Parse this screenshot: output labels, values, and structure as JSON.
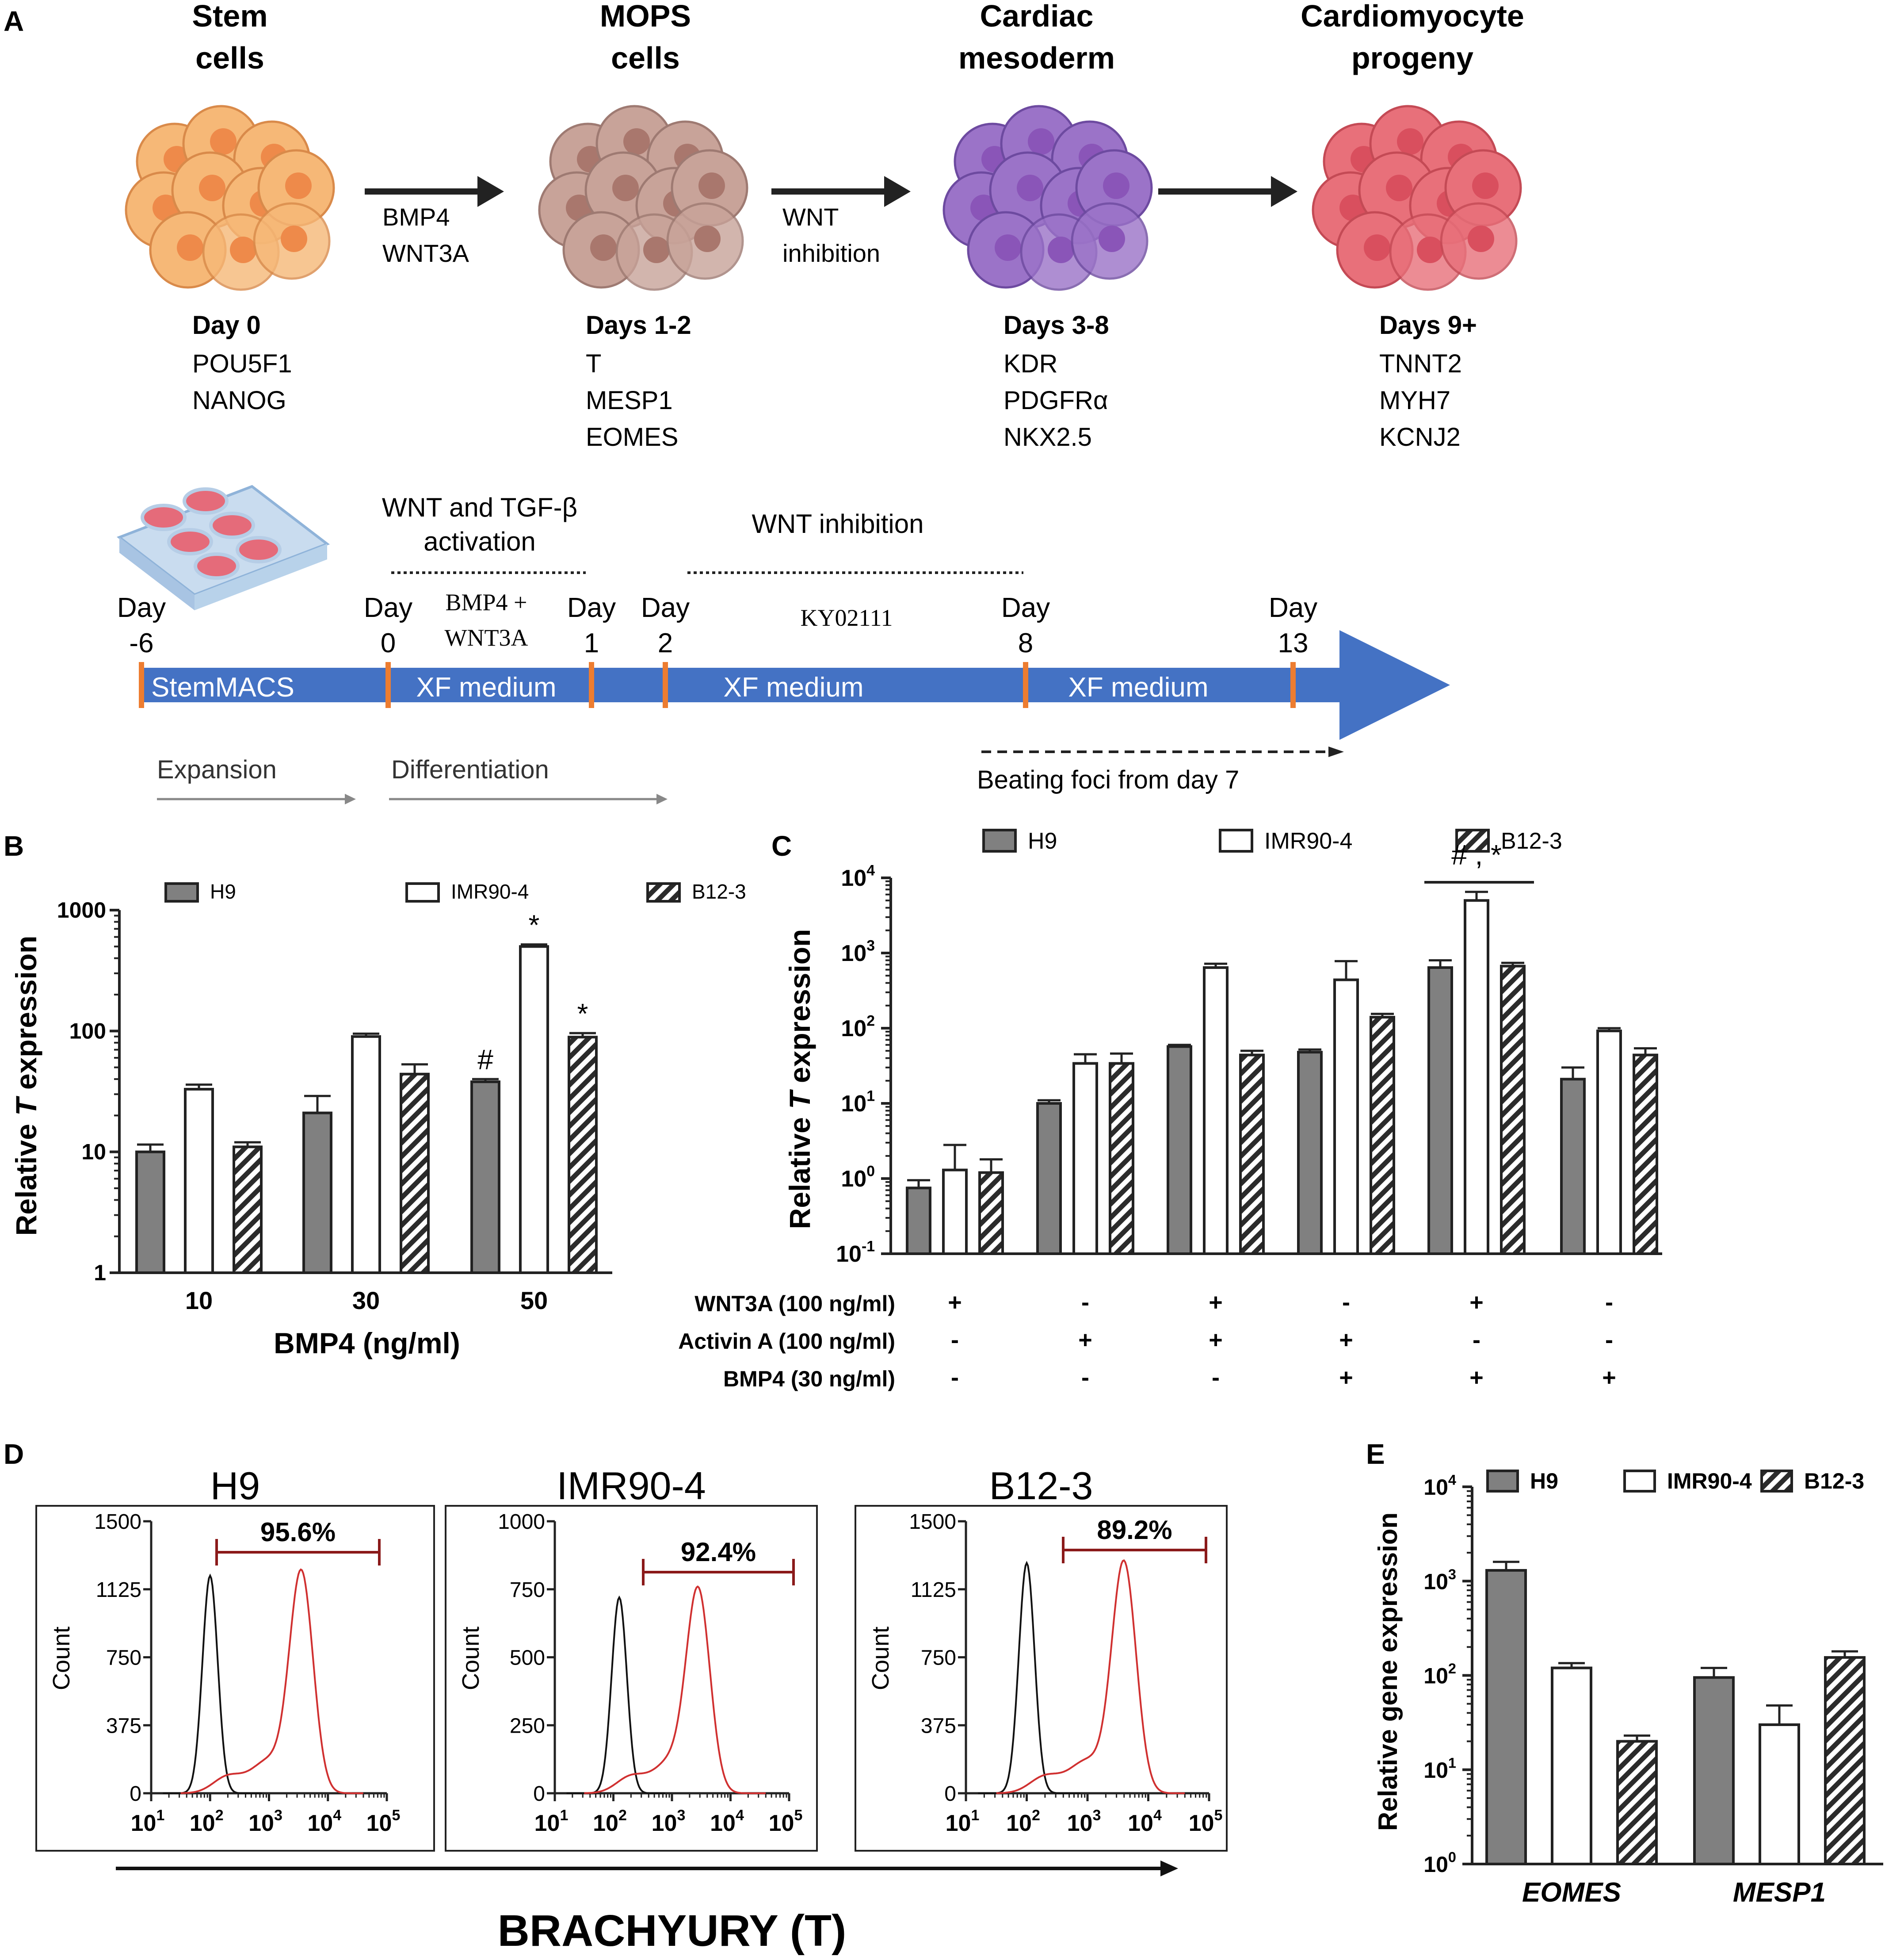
{
  "colors": {
    "black": "#222222",
    "grey": "#808080",
    "blue": "#4472c4",
    "orange": "#ed7d31",
    "red": "#d03030",
    "dark_red": "#8b1a1a",
    "stem": "#f6b877",
    "mops": "#c8a399",
    "meso": "#9b73c8",
    "cardio": "#e8707a"
  },
  "panel_a": {
    "letter": "A",
    "stages": [
      {
        "title1": "Stem",
        "title2": "cells",
        "day": "Day 0",
        "markers": [
          "POU5F1",
          "NANOG"
        ]
      },
      {
        "title1": "MOPS",
        "title2": "cells",
        "day": "Days 1-2",
        "markers": [
          "T",
          "MESP1",
          "EOMES"
        ]
      },
      {
        "title1": "Cardiac",
        "title2": "mesoderm",
        "day": "Days 3-8",
        "markers": [
          "KDR",
          "PDGFRα",
          "NKX2.5"
        ]
      },
      {
        "title1": "Cardiomyocyte",
        "title2": "progeny",
        "day": "Days 9+",
        "markers": [
          "TNNT2",
          "MYH7",
          "KCNJ2"
        ]
      }
    ],
    "arrow1": [
      "BMP4",
      "WNT3A"
    ],
    "arrow2": [
      "WNT",
      "inhibition"
    ],
    "timeline": {
      "act_label": [
        "WNT and TGF-β",
        "activation"
      ],
      "inh_label": "WNT inhibition",
      "ticks": [
        {
          "day": "Day",
          "num": "-6"
        },
        {
          "day": "Day",
          "num": "0"
        },
        {
          "day": "Day",
          "num": "1"
        },
        {
          "day": "Day",
          "num": "2"
        },
        {
          "day": "Day",
          "num": "8"
        },
        {
          "day": "Day",
          "num": "13"
        }
      ],
      "compounds1": [
        "BMP4 +",
        "WNT3A"
      ],
      "compound2": "KY02111",
      "segments": [
        "StemMACS",
        "XF medium",
        "XF medium",
        "XF medium"
      ],
      "expansion": "Expansion",
      "differentiation": "Differentiation",
      "beating": "Beating foci from day 7"
    }
  },
  "panel_b": {
    "letter": "B"
  },
  "panel_c": {
    "letter": "C"
  },
  "panel_d": {
    "letter": "D",
    "brachyury": "BRACHYURY (T)"
  },
  "panel_e": {
    "letter": "E"
  },
  "chart_data": [
    {
      "id": "B",
      "type": "bar",
      "scale": "log",
      "legend": [
        "H9",
        "IMR90-4",
        "B12-3"
      ],
      "categories": [
        "10",
        "30",
        "50"
      ],
      "series": [
        {
          "name": "H9",
          "values": [
            10,
            21,
            38
          ],
          "errors": [
            11.5,
            29,
            40
          ]
        },
        {
          "name": "IMR90-4",
          "values": [
            33,
            90,
            500
          ],
          "errors": [
            36,
            95,
            520
          ]
        },
        {
          "name": "B12-3",
          "values": [
            11,
            44,
            89
          ],
          "errors": [
            12,
            53,
            96
          ]
        }
      ],
      "annotations": [
        {
          "category": "50",
          "series": "H9",
          "text": "#"
        },
        {
          "category": "50",
          "series": "IMR90-4",
          "text": "*"
        },
        {
          "category": "50",
          "series": "B12-3",
          "text": "*"
        }
      ],
      "yticks": [
        "1",
        "10",
        "100",
        "1000"
      ],
      "ylim": [
        1,
        1000
      ],
      "ylabel": [
        "Relative ",
        "T",
        " expression"
      ],
      "xlabel": "BMP4 (ng/ml)"
    },
    {
      "id": "C",
      "type": "bar",
      "scale": "log",
      "legend": [
        "H9",
        "IMR90-4",
        "B12-3"
      ],
      "series": [
        {
          "name": "H9",
          "values": [
            0.75,
            10,
            57,
            48,
            640,
            21
          ],
          "errors": [
            0.95,
            11,
            60,
            52,
            800,
            30
          ]
        },
        {
          "name": "IMR90-4",
          "values": [
            1.3,
            34,
            640,
            440,
            5000,
            92
          ],
          "errors": [
            2.8,
            45,
            720,
            780,
            6500,
            100
          ]
        },
        {
          "name": "B12-3",
          "values": [
            1.2,
            34,
            44,
            140,
            670,
            44
          ],
          "errors": [
            1.8,
            46,
            50,
            155,
            740,
            54
          ]
        }
      ],
      "yticks": [
        {
          "base": "10",
          "exp": "-1"
        },
        {
          "base": "10",
          "exp": "0"
        },
        {
          "base": "10",
          "exp": "1"
        },
        {
          "base": "10",
          "exp": "2"
        },
        {
          "base": "10",
          "exp": "3"
        },
        {
          "base": "10",
          "exp": "4"
        }
      ],
      "ylim": [
        0.1,
        10000
      ],
      "ylabel": [
        "Relative ",
        "T",
        " expression"
      ],
      "significance": "# , *",
      "conditions": [
        {
          "label": "WNT3A (100 ng/ml)",
          "signs": [
            "+",
            "-",
            "+",
            "-",
            "+",
            "-"
          ]
        },
        {
          "label": "Activin  A  (100 ng/ml)",
          "signs": [
            "-",
            "+",
            "+",
            "+",
            "-",
            "-"
          ]
        },
        {
          "label": "BMP4 (30 ng/ml)",
          "signs": [
            "-",
            "-",
            "-",
            "+",
            "+",
            "+"
          ]
        }
      ]
    },
    {
      "id": "D",
      "type": "line",
      "subtype": "flow-histogram",
      "panels": [
        {
          "title": "H9",
          "percent": "95.6%",
          "yticks": [
            "0",
            "375",
            "750",
            "1125",
            "1500"
          ],
          "ymax": 1500,
          "black_peak": [
            2.0,
            1200
          ],
          "red_peak": [
            3.55,
            1200
          ]
        },
        {
          "title": "IMR90-4",
          "percent": "92.4%",
          "yticks": [
            "0",
            "250",
            "500",
            "750",
            "1000"
          ],
          "ymax": 1000,
          "black_peak": [
            2.1,
            720
          ],
          "red_peak": [
            3.45,
            720
          ]
        },
        {
          "title": "B12-3",
          "percent": "89.2%",
          "yticks": [
            "0",
            "375",
            "750",
            "1125",
            "1500"
          ],
          "ymax": 1500,
          "black_peak": [
            2.0,
            1270
          ],
          "red_peak": [
            3.6,
            1260
          ]
        }
      ],
      "ylabel": "Count",
      "xticks": [
        {
          "base": "10",
          "exp": "1"
        },
        {
          "base": "10",
          "exp": "2"
        },
        {
          "base": "10",
          "exp": "3"
        },
        {
          "base": "10",
          "exp": "4"
        },
        {
          "base": "10",
          "exp": "5"
        }
      ],
      "xlim": [
        1,
        5
      ]
    },
    {
      "id": "E",
      "type": "bar",
      "scale": "log",
      "legend": [
        "H9",
        "IMR90-4",
        "B12-3"
      ],
      "categories": [
        "EOMES",
        "MESP1"
      ],
      "series": [
        {
          "name": "H9",
          "values": [
            1300,
            95
          ],
          "errors": [
            1600,
            120
          ]
        },
        {
          "name": "IMR90-4",
          "values": [
            120,
            30
          ],
          "errors": [
            135,
            48
          ]
        },
        {
          "name": "B12-3",
          "values": [
            20,
            155
          ],
          "errors": [
            23,
            180
          ]
        }
      ],
      "yticks": [
        {
          "base": "10",
          "exp": "0"
        },
        {
          "base": "10",
          "exp": "1"
        },
        {
          "base": "10",
          "exp": "2"
        },
        {
          "base": "10",
          "exp": "3"
        },
        {
          "base": "10",
          "exp": "4"
        }
      ],
      "ylim": [
        1,
        10000
      ],
      "ylabel": "Relative gene expression"
    }
  ]
}
